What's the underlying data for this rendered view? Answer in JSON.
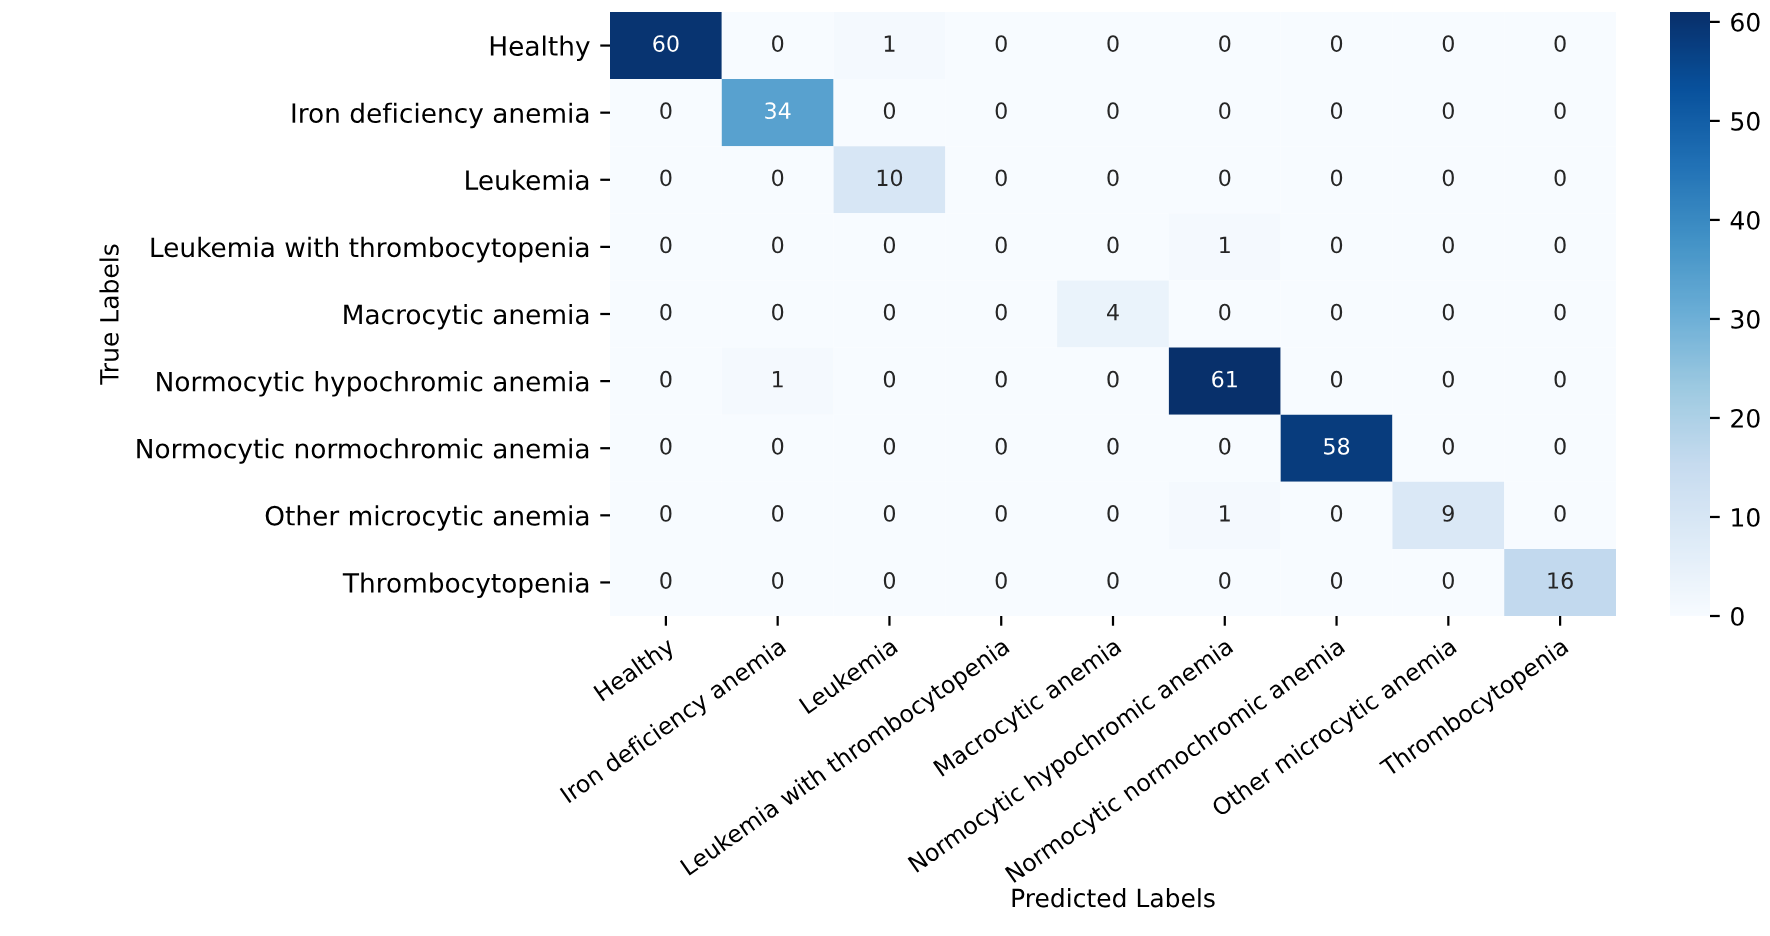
{
  "chart_data": {
    "type": "heatmap",
    "xlabel": "Predicted Labels",
    "ylabel": "True Labels",
    "categories": [
      "Healthy",
      "Iron deficiency anemia",
      "Leukemia",
      "Leukemia with thrombocytopenia",
      "Macrocytic anemia",
      "Normocytic hypochromic anemia",
      "Normocytic normochromic anemia",
      "Other microcytic anemia",
      "Thrombocytopenia"
    ],
    "y_categories": [
      "Healthy",
      "Iron deficiency anemia",
      "Leukemia",
      "Leukemia with thrombocytopenia",
      "Macrocytic anemia",
      "Normocytic hypochromic anemia",
      "Normocytic normochromic anemia",
      "Other microcytic anemia",
      "Thrombocytopenia"
    ],
    "cells": [
      [
        60,
        0,
        1,
        0,
        0,
        0,
        0,
        0,
        0
      ],
      [
        0,
        34,
        0,
        0,
        0,
        0,
        0,
        0,
        0
      ],
      [
        0,
        0,
        10,
        0,
        0,
        0,
        0,
        0,
        0
      ],
      [
        0,
        0,
        0,
        0,
        0,
        1,
        0,
        0,
        0
      ],
      [
        0,
        0,
        0,
        0,
        4,
        0,
        0,
        0,
        0
      ],
      [
        0,
        1,
        0,
        0,
        0,
        61,
        0,
        0,
        0
      ],
      [
        0,
        0,
        0,
        0,
        0,
        0,
        58,
        0,
        0
      ],
      [
        0,
        0,
        0,
        0,
        0,
        1,
        0,
        9,
        0
      ],
      [
        0,
        0,
        0,
        0,
        0,
        0,
        0,
        0,
        16
      ]
    ],
    "clim": [
      0,
      61
    ],
    "cticks": [
      0,
      10,
      20,
      30,
      40,
      50,
      60
    ],
    "data_labels": true
  }
}
